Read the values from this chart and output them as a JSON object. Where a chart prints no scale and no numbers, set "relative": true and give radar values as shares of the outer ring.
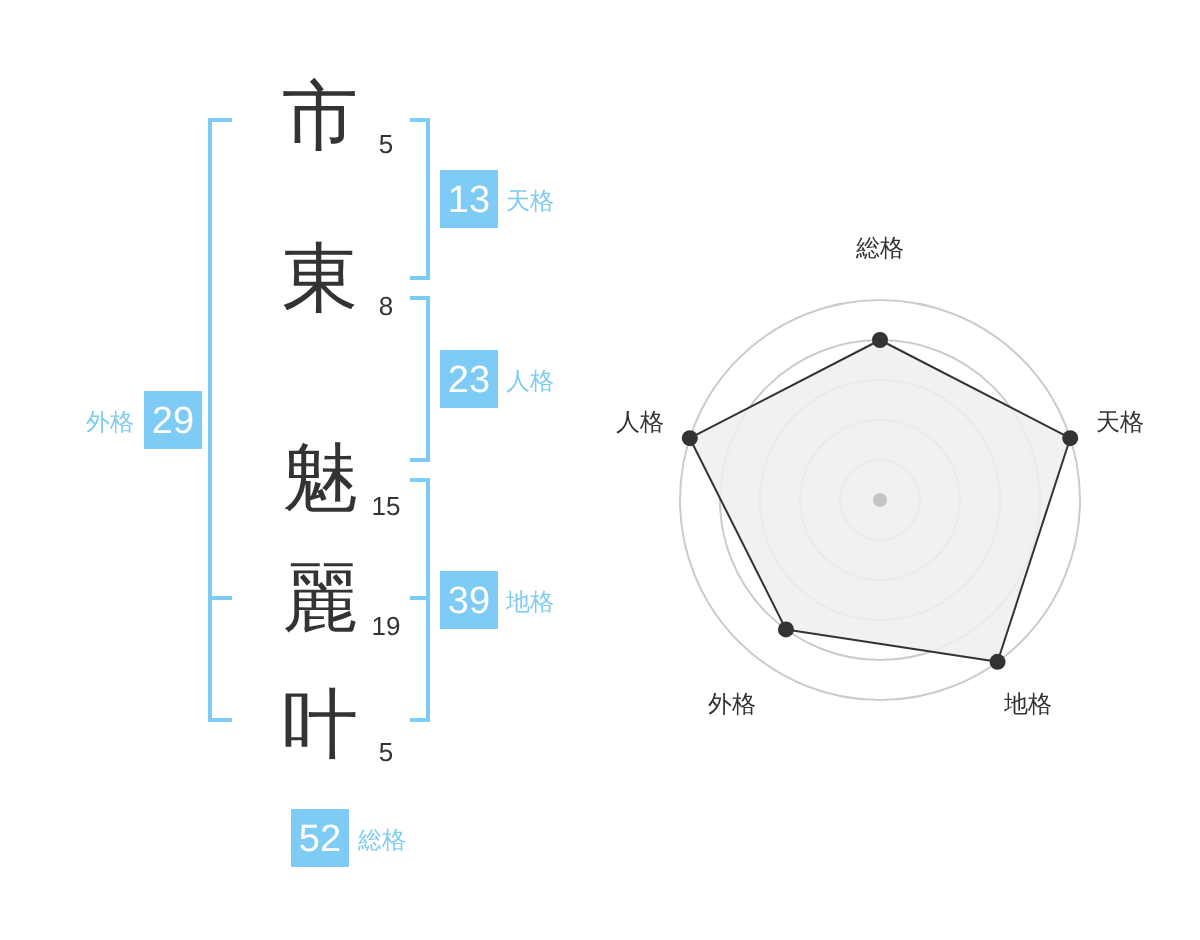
{
  "chart_data": [
    {
      "type": "other",
      "categories": [
        "市",
        "東",
        "魅",
        "麗",
        "叶"
      ],
      "values": [
        5,
        8,
        15,
        19,
        5
      ],
      "data_labels": true,
      "color": "#333333"
    },
    {
      "type": "other",
      "categories": [
        "天格",
        "人格",
        "地格",
        "外格",
        "総格"
      ],
      "values": [
        13,
        23,
        39,
        29,
        52
      ],
      "data_labels": true,
      "color": "#7ecbf5"
    },
    {
      "type": "radar",
      "categories": [
        "総格",
        "天格",
        "地格",
        "外格",
        "人格"
      ],
      "series": [
        {
          "color": "#333333",
          "values": [
            0.8,
            1,
            1,
            0.8,
            1
          ]
        }
      ],
      "relative": true,
      "grid": true,
      "marker": "circle"
    }
  ]
}
